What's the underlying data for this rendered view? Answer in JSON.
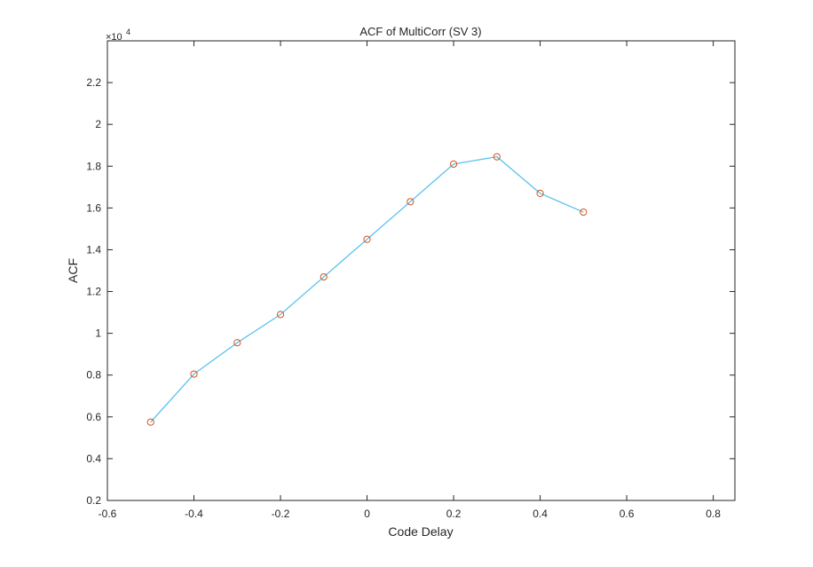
{
  "chart_data": {
    "type": "line",
    "title": "ACF of MultiCorr (SV 3)",
    "xlabel": "Code Delay",
    "ylabel": "ACF",
    "exponent_label": "×10",
    "exponent_power": "4",
    "xlim": [
      -0.6,
      0.85
    ],
    "ylim": [
      0.2,
      2.4
    ],
    "x_ticks": [
      -0.6,
      -0.4,
      -0.2,
      0,
      0.2,
      0.4,
      0.6,
      0.8
    ],
    "x_tick_labels": [
      "-0.6",
      "-0.4",
      "-0.2",
      "0",
      "0.2",
      "0.4",
      "0.6",
      "0.8"
    ],
    "y_ticks": [
      0.2,
      0.4,
      0.6,
      0.8,
      1,
      1.2,
      1.4,
      1.6,
      1.8,
      2,
      2.2
    ],
    "y_tick_labels": [
      "0.2",
      "0.4",
      "0.6",
      "0.8",
      "1",
      "1.2",
      "1.4",
      "1.6",
      "1.8",
      "2",
      "2.2"
    ],
    "grid": false,
    "series": [
      {
        "x": [
          -0.5,
          -0.4,
          -0.3,
          -0.2,
          -0.1,
          0,
          0.1,
          0.2,
          0.3,
          0.4,
          0.5
        ],
        "values": [
          0.575,
          0.805,
          0.955,
          1.09,
          1.27,
          1.45,
          1.63,
          1.81,
          1.845,
          1.67,
          1.58
        ],
        "color": "#0072BD",
        "line_color": "#4DBEEE",
        "marker": "circle",
        "marker_color": "#D95319"
      }
    ]
  }
}
